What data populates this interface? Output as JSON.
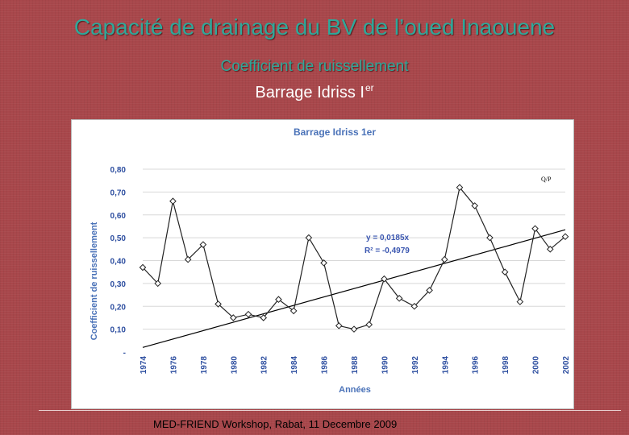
{
  "slide": {
    "title": "Capacité de drainage du BV de l’oued Inaouene",
    "subtitle": "Coefficient de ruissellement",
    "subtitle2": "Barrage Idriss I",
    "subtitle2_sup": "er",
    "footer": "MED-FRIEND Workshop, Rabat, 11 Decembre 2009"
  },
  "chart_data": {
    "type": "line",
    "title": "Barrage Idriss 1er",
    "xlabel": "Années",
    "ylabel": "Coefficient de ruissellement",
    "x": [
      1974,
      1975,
      1976,
      1977,
      1978,
      1979,
      1980,
      1981,
      1982,
      1983,
      1984,
      1985,
      1986,
      1987,
      1988,
      1989,
      1990,
      1991,
      1992,
      1993,
      1994,
      1995,
      1996,
      1997,
      1998,
      1999,
      2000,
      2001,
      2002
    ],
    "series": [
      {
        "name": "Q/P",
        "values": [
          0.37,
          0.3,
          0.66,
          0.405,
          0.47,
          0.21,
          0.15,
          0.165,
          0.15,
          0.23,
          0.18,
          0.5,
          0.39,
          0.115,
          0.1,
          0.12,
          0.32,
          0.235,
          0.2,
          0.27,
          0.405,
          0.72,
          0.64,
          0.5,
          0.35,
          0.22,
          0.54,
          0.45,
          0.505
        ]
      }
    ],
    "trendline": {
      "equation": "y = 0,0185x",
      "r2": "R² = -0,4979",
      "start_value": 0.02,
      "end_value": 0.535
    },
    "ylim": [
      0,
      0.8
    ],
    "y_ticks": [
      "-",
      "0,10",
      "0,20",
      "0,30",
      "0,40",
      "0,50",
      "0,60",
      "0,70",
      "0,80"
    ],
    "x_ticks": [
      "1974",
      "1976",
      "1978",
      "1980",
      "1982",
      "1984",
      "1986",
      "1988",
      "1990",
      "1992",
      "1994",
      "1996",
      "1998",
      "2000",
      "2002"
    ],
    "legend_label": "Q/P",
    "grid": true,
    "legend_position": "top-right",
    "colors": {
      "line": "#222222",
      "marker_fill": "#ffffff",
      "trend": "#000000",
      "grid": "#d8d8d8"
    }
  }
}
